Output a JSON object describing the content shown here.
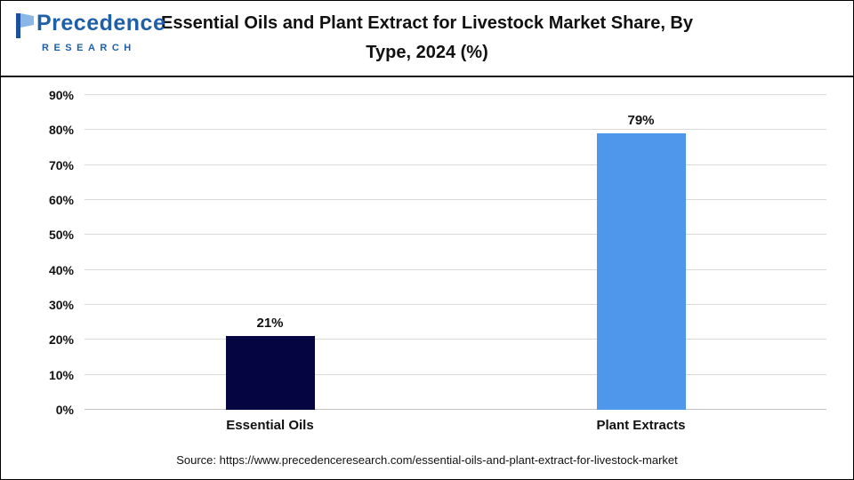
{
  "header": {
    "title_line1": "Essential Oils and Plant Extract for Livestock Market Share, By",
    "title_line2": "Type, 2024 (%)",
    "logo": {
      "brand": "Precedence",
      "sub": "RESEARCH"
    }
  },
  "chart_data": {
    "type": "bar",
    "title": "Essential Oils and Plant Extract for Livestock Market Share, By Type, 2024 (%)",
    "categories": [
      "Essential Oils",
      "Plant Extracts"
    ],
    "values": [
      21,
      79
    ],
    "data_labels": [
      "21%",
      "79%"
    ],
    "ylim": [
      0,
      90
    ],
    "yticks": [
      "0%",
      "10%",
      "20%",
      "30%",
      "40%",
      "50%",
      "60%",
      "70%",
      "80%",
      "90%"
    ],
    "bar_colors": [
      "#050542",
      "#4f97ea"
    ],
    "grid": true,
    "legend": "none",
    "xlabel": "",
    "ylabel": ""
  },
  "footer": {
    "source": "Source: https://www.precedenceresearch.com/essential-oils-and-plant-extract-for-livestock-market"
  },
  "colors": {
    "essential_oils_bar": "#050542",
    "plant_extracts_bar": "#4f97ea",
    "logo_blue": "#1e5fa8",
    "gridline": "#d9d9d9"
  }
}
